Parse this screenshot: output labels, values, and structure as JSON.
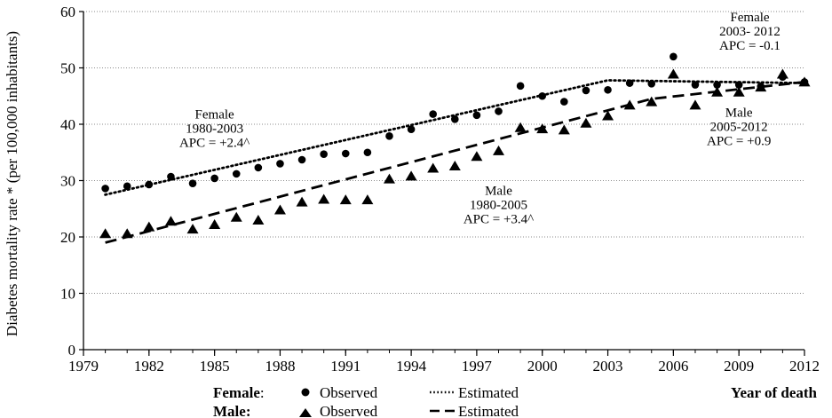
{
  "chart_data": {
    "type": "line",
    "ylabel": "Diabetes mortality rate * (per 100,000 inhabitants)",
    "xlabel": "Year of death",
    "xlim": [
      1979,
      2012
    ],
    "ylim": [
      0,
      60
    ],
    "xticks": [
      1979,
      1982,
      1985,
      1988,
      1991,
      1994,
      1997,
      2000,
      2003,
      2006,
      2009,
      2012
    ],
    "yticks": [
      0,
      10,
      20,
      30,
      40,
      50,
      60
    ],
    "grid": "horizontal dotted",
    "legend": {
      "position": "bottom",
      "female_label": "Female",
      "female_colon": ":",
      "male_label": "Male:",
      "observed_label": "Observed",
      "estimated_label": "Estimated"
    },
    "series": [
      {
        "name": "Female Observed",
        "marker": "circle",
        "x": [
          1980,
          1981,
          1982,
          1983,
          1984,
          1985,
          1986,
          1987,
          1988,
          1989,
          1990,
          1991,
          1992,
          1993,
          1994,
          1995,
          1996,
          1997,
          1998,
          1999,
          2000,
          2001,
          2002,
          2003,
          2004,
          2005,
          2006,
          2007,
          2008,
          2009,
          2010,
          2011,
          2012
        ],
        "y": [
          28.6,
          29.0,
          29.3,
          30.7,
          29.5,
          30.4,
          31.2,
          32.3,
          33.0,
          33.7,
          34.7,
          34.8,
          35.0,
          37.9,
          39.1,
          41.8,
          40.9,
          41.6,
          42.3,
          46.8,
          45.0,
          44.0,
          46.0,
          46.1,
          47.3,
          47.2,
          52.0,
          47.0,
          47.0,
          47.0,
          46.7,
          48.4,
          47.5
        ]
      },
      {
        "name": "Male Observed",
        "marker": "triangle",
        "x": [
          1980,
          1981,
          1982,
          1983,
          1984,
          1985,
          1986,
          1987,
          1988,
          1989,
          1990,
          1991,
          1992,
          1993,
          1994,
          1995,
          1996,
          1997,
          1998,
          1999,
          2000,
          2001,
          2002,
          2003,
          2004,
          2005,
          2006,
          2007,
          2008,
          2009,
          2010,
          2011,
          2012
        ],
        "y": [
          20.6,
          20.6,
          21.8,
          22.8,
          21.4,
          22.2,
          23.5,
          23.0,
          24.8,
          26.2,
          26.7,
          26.6,
          26.6,
          30.3,
          30.8,
          32.2,
          32.6,
          34.3,
          35.3,
          39.4,
          39.2,
          39.0,
          40.2,
          41.5,
          43.4,
          44.0,
          48.9,
          43.4,
          45.7,
          45.7,
          46.6,
          48.9,
          47.5
        ]
      },
      {
        "name": "Female Estimated",
        "style": "dotted",
        "x": [
          1980,
          2003,
          2012
        ],
        "y": [
          27.5,
          47.8,
          47.3
        ]
      },
      {
        "name": "Male Estimated",
        "style": "dashed",
        "x": [
          1980,
          2005,
          2012
        ],
        "y": [
          19.0,
          44.5,
          47.5
        ]
      }
    ],
    "annotations": [
      {
        "lines": [
          "Female",
          "1980-2003",
          "APC = +2.4^"
        ],
        "x": 1985.0,
        "y": 41.0
      },
      {
        "lines": [
          "Male",
          "1980-2005",
          "APC = +3.4^"
        ],
        "x": 1998.0,
        "y": 27.5
      },
      {
        "lines": [
          "Female",
          "2003- 2012",
          "APC = -0.1"
        ],
        "x": 2009.5,
        "y": 58.3
      },
      {
        "lines": [
          "Male",
          "2005-2012",
          "APC = +0.9"
        ],
        "x": 2009.0,
        "y": 41.3
      }
    ]
  }
}
